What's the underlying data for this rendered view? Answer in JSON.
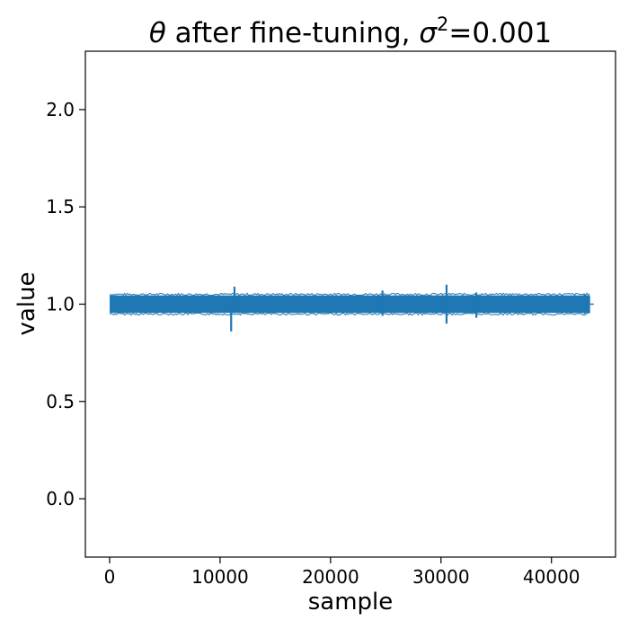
{
  "chart_data": {
    "type": "line",
    "title": {
      "theta": "θ",
      "middle": " after fine-tuning, ",
      "sigma": "σ",
      "superscript": "2",
      "suffix": "=0.001"
    },
    "xlabel": "sample",
    "ylabel": "value",
    "xlim": [
      -2200,
      45800
    ],
    "ylim": [
      -0.3,
      2.3
    ],
    "x_ticks": [
      0,
      10000,
      20000,
      30000,
      40000
    ],
    "x_tick_labels": [
      "0",
      "10000",
      "20000",
      "30000",
      "40000"
    ],
    "y_ticks": [
      0.0,
      0.5,
      1.0,
      1.5,
      2.0
    ],
    "y_tick_labels": [
      "0.0",
      "0.5",
      "1.0",
      "1.5",
      "2.0"
    ],
    "grid": false,
    "series": [
      {
        "color": "#1f77b4",
        "x_range": [
          0,
          43500
        ],
        "baseline": 1.0,
        "band_low": 0.955,
        "band_high": 1.045,
        "spikes": [
          {
            "x": 11000,
            "low": 0.86,
            "high": 1.0
          },
          {
            "x": 11300,
            "low": 1.0,
            "high": 1.09
          },
          {
            "x": 24700,
            "low": 0.94,
            "high": 1.07
          },
          {
            "x": 30500,
            "low": 0.9,
            "high": 1.1
          },
          {
            "x": 33200,
            "low": 0.93,
            "high": 1.06
          },
          {
            "x": 43000,
            "low": 0.95,
            "high": 1.05
          }
        ]
      }
    ]
  }
}
